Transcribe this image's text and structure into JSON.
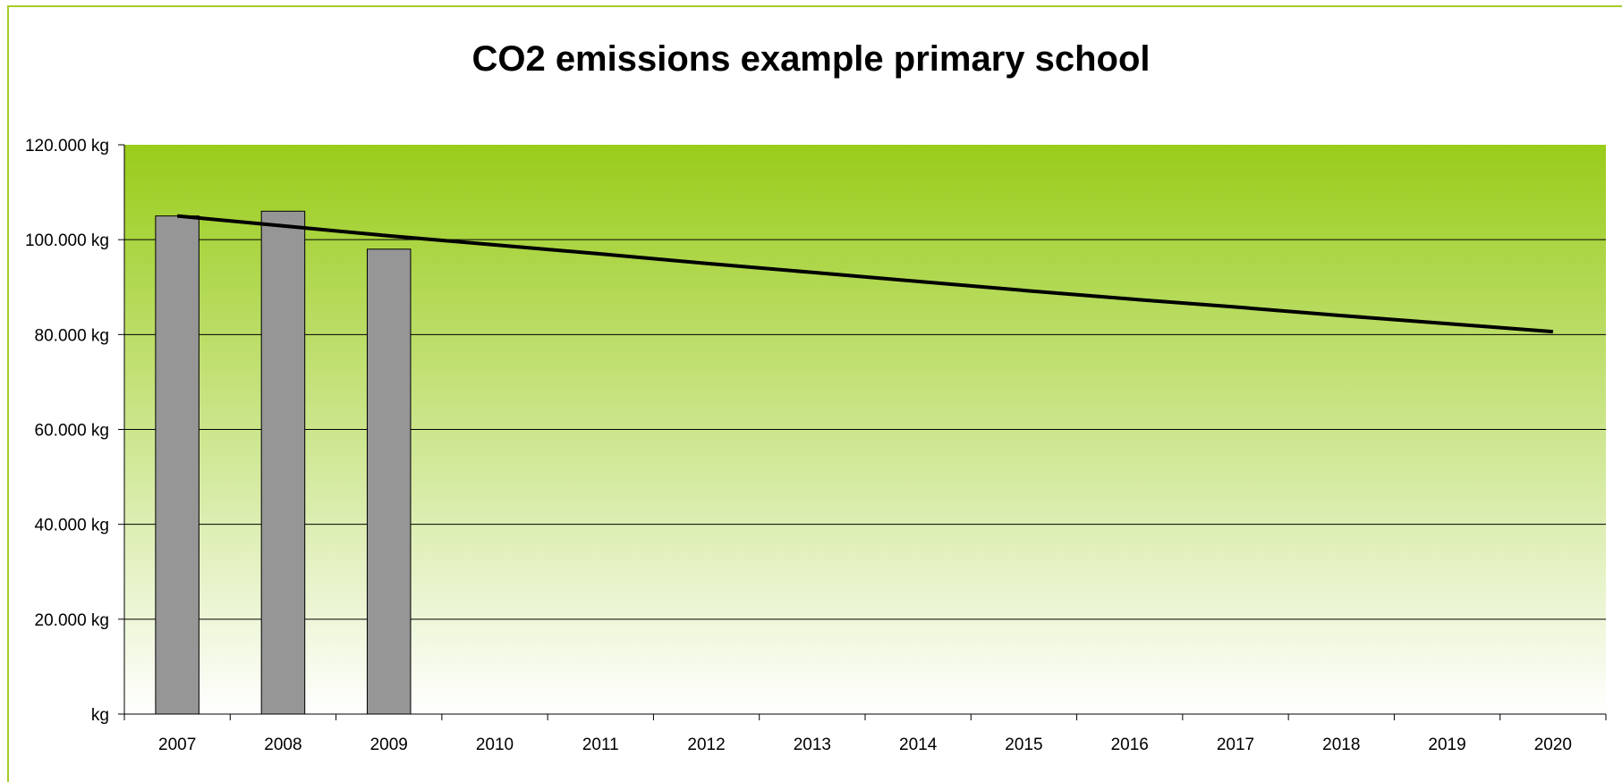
{
  "chart_data": {
    "type": "bar",
    "title": "CO2 emissions example primary school",
    "xlabel": "",
    "ylabel": "",
    "categories": [
      "2007",
      "2008",
      "2009",
      "2010",
      "2011",
      "2012",
      "2013",
      "2014",
      "2015",
      "2016",
      "2017",
      "2018",
      "2019",
      "2020"
    ],
    "series": [
      {
        "type": "bar",
        "values": [
          105000,
          106000,
          98000,
          null,
          null,
          null,
          null,
          null,
          null,
          null,
          null,
          null,
          null,
          null
        ],
        "color": "#969696"
      },
      {
        "type": "line",
        "values": [
          105000,
          102900,
          100800,
          98900,
          97000,
          95000,
          93100,
          91200,
          89300,
          87500,
          85800,
          84000,
          82300,
          80600
        ],
        "color": "#000000"
      }
    ],
    "ylim": [
      0,
      120000
    ],
    "yticks": [
      0,
      20000,
      40000,
      60000,
      80000,
      100000,
      120000
    ],
    "ytick_labels": [
      "kg",
      "20.000 kg",
      "40.000 kg",
      "60.000 kg",
      "80.000 kg",
      "100.000 kg",
      "120.000 kg"
    ],
    "grid": true,
    "legend": "none",
    "plot_background": {
      "gradient_top": "#99cc1a",
      "gradient_bottom": "#ffffff"
    },
    "frame_color": "#a6cc2a"
  }
}
